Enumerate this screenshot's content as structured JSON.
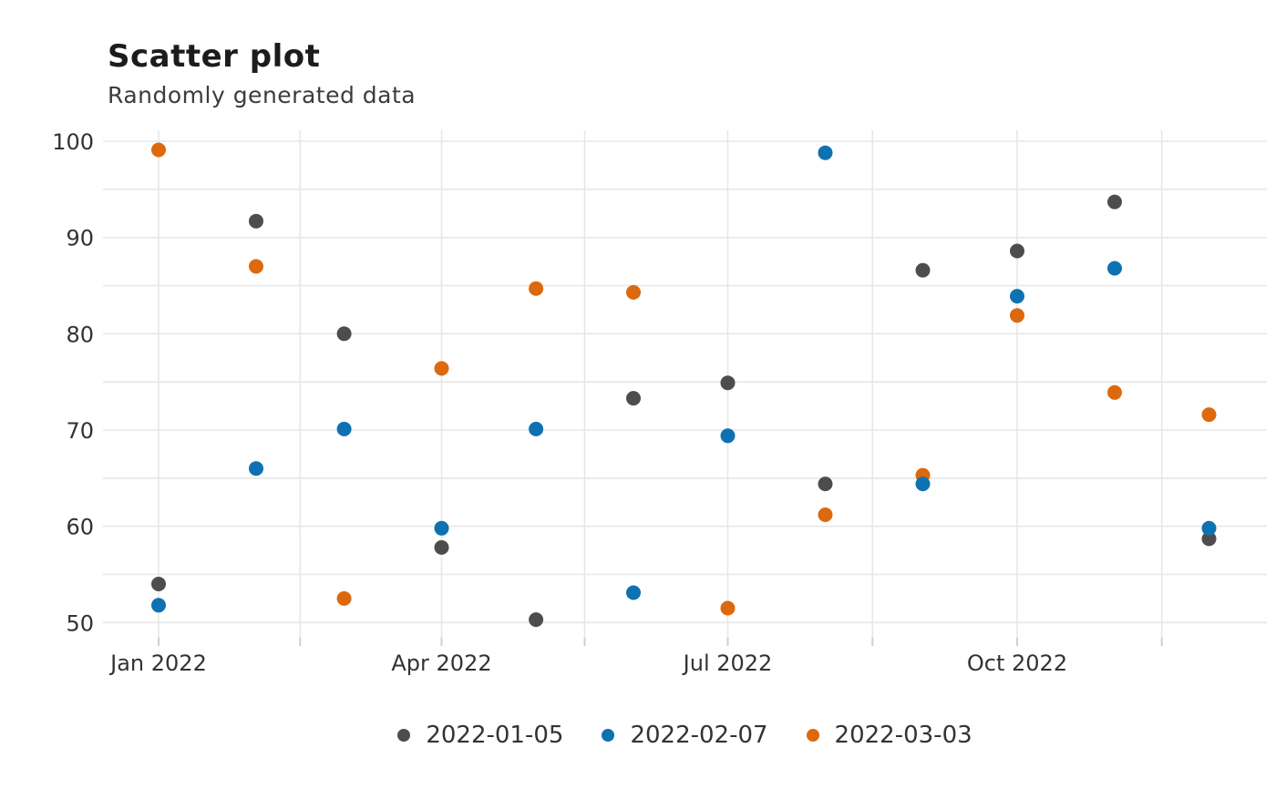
{
  "header": {
    "title": "Scatter plot",
    "subtitle": "Randomly generated data"
  },
  "chart_data": {
    "type": "scatter",
    "title": "Scatter plot",
    "subtitle": "Randomly generated data",
    "x_categories": [
      "2022-01",
      "2022-02",
      "2022-03",
      "2022-04",
      "2022-05",
      "2022-06",
      "2022-07",
      "2022-08",
      "2022-09",
      "2022-10",
      "2022-11",
      "2022-12"
    ],
    "x_tick_labels": [
      "Jan 2022",
      "Apr 2022",
      "Jul 2022",
      "Oct 2022"
    ],
    "x_tick_months": [
      0,
      3,
      6,
      9
    ],
    "y_ticks": [
      50,
      60,
      70,
      80,
      90,
      100
    ],
    "y_minor_step": 5,
    "ylim": [
      50,
      100
    ],
    "grid": true,
    "legend_position": "bottom",
    "series": [
      {
        "name": "2022-01-05",
        "color": "#4d4d4d",
        "values": [
          54.0,
          91.7,
          80.0,
          57.8,
          50.3,
          73.3,
          74.9,
          64.4,
          86.6,
          88.6,
          93.7,
          58.7
        ]
      },
      {
        "name": "2022-02-07",
        "color": "#0e72b1",
        "values": [
          51.8,
          66.0,
          70.1,
          59.8,
          70.1,
          53.1,
          69.4,
          98.8,
          64.4,
          83.9,
          86.8,
          59.8
        ]
      },
      {
        "name": "2022-03-03",
        "color": "#dd690e",
        "values": [
          99.1,
          87.0,
          52.5,
          76.4,
          84.7,
          84.3,
          51.5,
          61.2,
          65.3,
          81.9,
          73.9,
          71.6
        ]
      }
    ]
  },
  "colors": {
    "background": "#ffffff",
    "grid": "#e7e7e7",
    "tick_mark": "#cfcfcf",
    "axis_text": "#333333",
    "title_text": "#1c1c1c",
    "subtitle_text": "#3c3c3c"
  }
}
